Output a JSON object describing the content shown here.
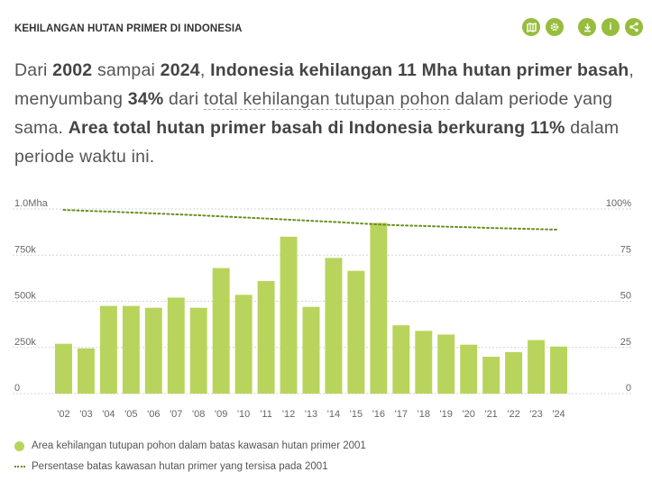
{
  "widget": {
    "title": "KEHILANGAN HUTAN PRIMER DI INDONESIA",
    "actions": [
      {
        "name": "map-icon"
      },
      {
        "name": "settings-icon"
      },
      {
        "name": "download-icon"
      },
      {
        "name": "info-icon",
        "glyph": "i"
      },
      {
        "name": "share-icon"
      }
    ]
  },
  "sentence": {
    "p1": "Dari ",
    "year_start": "2002",
    "p2": " sampai ",
    "year_end": "2024",
    "p3": ", ",
    "highlight": "Indonesia kehilangan 11 Mha hutan primer basah",
    "p4": ", menyumbang ",
    "pct": "34%",
    "p5": " dari ",
    "link": "total kehilangan tutupan pohon",
    "p6": " dalam periode yang sama. ",
    "highlight2": "Area total hutan primer basah di Indonesia berkurang 11%",
    "p7": " dalam periode waktu ini."
  },
  "colors": {
    "bar": "#b9d45c",
    "line": "#6b8e23",
    "accent": "#97bd3d"
  },
  "chart_data": {
    "type": "bar",
    "categories": [
      "'02",
      "'03",
      "'04",
      "'05",
      "'06",
      "'07",
      "'08",
      "'09",
      "'10",
      "'11",
      "'12",
      "'13",
      "'14",
      "'15",
      "'16",
      "'17",
      "'18",
      "'19",
      "'20",
      "'21",
      "'22",
      "'23",
      "'24"
    ],
    "series": [
      {
        "name": "Area kehilangan tutupan pohon dalam batas kawasan hutan primer 2001",
        "axis": "left",
        "values": [
          270000,
          245000,
          475000,
          475000,
          465000,
          520000,
          465000,
          680000,
          535000,
          610000,
          850000,
          470000,
          735000,
          665000,
          925000,
          370000,
          340000,
          320000,
          265000,
          200000,
          225000,
          290000,
          255000
        ]
      },
      {
        "name": "Persentase batas kawasan hutan primer yang tersisa pada 2001",
        "axis": "right",
        "type": "line",
        "values": [
          99.5,
          99.0,
          98.6,
          98.1,
          97.6,
          97.1,
          96.6,
          96.0,
          95.4,
          94.8,
          94.2,
          93.6,
          93.0,
          92.3,
          91.6,
          91.1,
          90.8,
          90.4,
          90.1,
          89.7,
          89.4,
          89.1,
          88.8
        ]
      }
    ],
    "y_left": {
      "ticks": [
        "0",
        "250k",
        "500k",
        "750k",
        "1.0Mha"
      ],
      "tick_values": [
        0,
        250000,
        500000,
        750000,
        1000000
      ],
      "lim": [
        0,
        1000000
      ]
    },
    "y_right": {
      "ticks": [
        "0",
        "25",
        "50",
        "75",
        "100%"
      ],
      "tick_values": [
        0,
        25,
        50,
        75,
        100
      ],
      "lim": [
        0,
        100
      ]
    },
    "grid": "horizontal-dashed"
  },
  "legend": [
    {
      "label": "Area kehilangan tutupan pohon dalam batas kawasan hutan primer 2001"
    },
    {
      "label": "Persentase batas kawasan hutan primer yang tersisa pada 2001"
    }
  ]
}
